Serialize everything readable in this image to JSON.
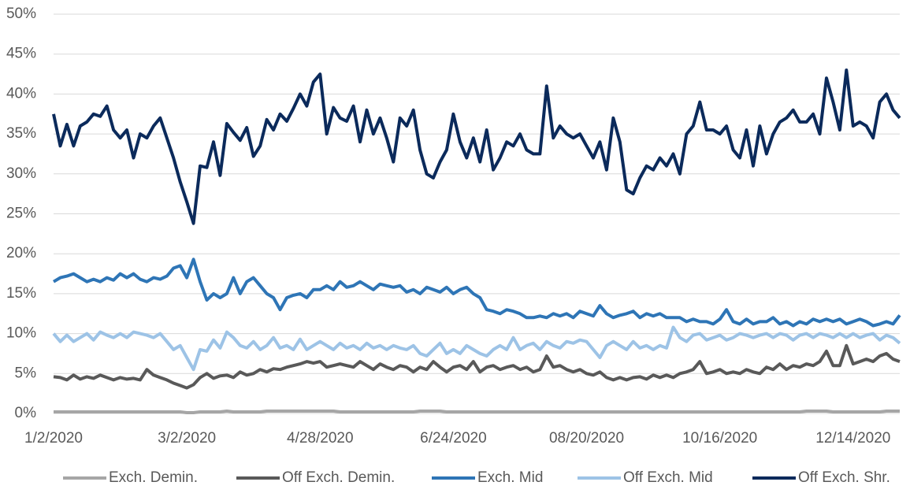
{
  "chart_data": {
    "type": "line",
    "categories": [
      "1/2/2020",
      null,
      null,
      null,
      null,
      null,
      null,
      null,
      null,
      null,
      null,
      null,
      null,
      null,
      null,
      null,
      null,
      null,
      null,
      null,
      "3/2/2020",
      null,
      null,
      null,
      null,
      null,
      null,
      null,
      null,
      null,
      null,
      null,
      null,
      null,
      null,
      null,
      null,
      null,
      null,
      null,
      "4/28/2020",
      null,
      null,
      null,
      null,
      null,
      null,
      null,
      null,
      null,
      null,
      null,
      null,
      null,
      null,
      null,
      null,
      null,
      null,
      null,
      "6/24/2020",
      null,
      null,
      null,
      null,
      null,
      null,
      null,
      null,
      null,
      null,
      null,
      null,
      null,
      null,
      null,
      null,
      null,
      null,
      null,
      "08/20/2020",
      null,
      null,
      null,
      null,
      null,
      null,
      null,
      null,
      null,
      null,
      null,
      null,
      null,
      null,
      null,
      null,
      null,
      null,
      null,
      "10/16/2020",
      null,
      null,
      null,
      null,
      null,
      null,
      null,
      null,
      null,
      null,
      null,
      null,
      null,
      null,
      null,
      null,
      null,
      null,
      null,
      "12/14/2020",
      null,
      null,
      null,
      null,
      null,
      null,
      null
    ],
    "series": [
      {
        "name": "Exch. Demin.",
        "color": "#a6a6a6",
        "values": [
          0.2,
          0.2,
          0.2,
          0.2,
          0.2,
          0.2,
          0.2,
          0.2,
          0.2,
          0.2,
          0.2,
          0.2,
          0.2,
          0.2,
          0.2,
          0.2,
          0.2,
          0.2,
          0.2,
          0.2,
          0.1,
          0.1,
          0.2,
          0.2,
          0.2,
          0.2,
          0.3,
          0.2,
          0.2,
          0.2,
          0.2,
          0.2,
          0.3,
          0.3,
          0.3,
          0.3,
          0.3,
          0.3,
          0.3,
          0.3,
          0.3,
          0.3,
          0.3,
          0.2,
          0.2,
          0.2,
          0.2,
          0.2,
          0.2,
          0.2,
          0.2,
          0.2,
          0.2,
          0.2,
          0.2,
          0.3,
          0.3,
          0.3,
          0.3,
          0.2,
          0.2,
          0.2,
          0.2,
          0.2,
          0.2,
          0.2,
          0.2,
          0.2,
          0.2,
          0.2,
          0.2,
          0.2,
          0.2,
          0.2,
          0.2,
          0.2,
          0.2,
          0.2,
          0.2,
          0.2,
          0.2,
          0.2,
          0.2,
          0.2,
          0.2,
          0.2,
          0.2,
          0.2,
          0.2,
          0.2,
          0.2,
          0.2,
          0.2,
          0.2,
          0.2,
          0.2,
          0.2,
          0.2,
          0.2,
          0.2,
          0.2,
          0.2,
          0.2,
          0.2,
          0.2,
          0.2,
          0.2,
          0.2,
          0.2,
          0.2,
          0.2,
          0.2,
          0.2,
          0.3,
          0.3,
          0.3,
          0.3,
          0.2,
          0.2,
          0.2,
          0.2,
          0.2,
          0.2,
          0.2,
          0.2,
          0.3,
          0.3,
          0.3
        ]
      },
      {
        "name": "Off Exch. Demin.",
        "color": "#595959",
        "values": [
          4.6,
          4.5,
          4.2,
          4.8,
          4.3,
          4.6,
          4.4,
          4.8,
          4.5,
          4.2,
          4.5,
          4.3,
          4.4,
          4.2,
          5.5,
          4.8,
          4.5,
          4.2,
          3.8,
          3.5,
          3.2,
          3.6,
          4.5,
          5,
          4.4,
          4.7,
          4.8,
          4.5,
          5.2,
          4.8,
          5,
          5.5,
          5.2,
          5.6,
          5.5,
          5.8,
          6,
          6.2,
          6.5,
          6.3,
          6.5,
          5.8,
          6,
          6.2,
          6,
          5.8,
          6.5,
          6,
          5.5,
          6.2,
          5.8,
          5.5,
          6,
          5.8,
          5.2,
          5.8,
          5.5,
          6.5,
          5.8,
          5.2,
          5.8,
          6,
          5.5,
          6.5,
          5.2,
          5.8,
          6,
          5.5,
          5.8,
          6,
          5.5,
          5.8,
          5.2,
          5.5,
          7.2,
          5.8,
          6,
          5.5,
          5.2,
          5.5,
          5,
          4.8,
          5.2,
          4.5,
          4.2,
          4.5,
          4.2,
          4.5,
          4.6,
          4.3,
          4.8,
          4.5,
          4.8,
          4.5,
          5,
          5.2,
          5.5,
          6.5,
          5,
          5.2,
          5.5,
          5,
          5.2,
          5,
          5.5,
          5.2,
          5,
          5.8,
          5.5,
          6.2,
          5.5,
          6,
          5.8,
          6.2,
          6,
          6.5,
          7.8,
          6,
          6,
          8.5,
          6.2,
          6.5,
          6.8,
          6.5,
          7.2,
          7.5,
          6.8,
          6.5
        ]
      },
      {
        "name": "Exch. Mid",
        "color": "#2e75b6",
        "values": [
          16.5,
          17,
          17.2,
          17.5,
          17,
          16.5,
          16.8,
          16.5,
          17,
          16.7,
          17.5,
          17,
          17.5,
          16.8,
          16.5,
          17,
          16.8,
          17.2,
          18.2,
          18.5,
          17,
          19.3,
          16.5,
          14.2,
          15,
          14.5,
          15,
          17,
          15,
          16.5,
          17,
          16,
          15,
          14.5,
          13,
          14.5,
          14.8,
          15,
          14.5,
          15.5,
          15.5,
          16,
          15.5,
          16.5,
          15.8,
          16,
          16.5,
          16,
          15.5,
          16.2,
          16,
          15.8,
          16,
          15.2,
          15.5,
          15,
          15.8,
          15.5,
          15.2,
          15.8,
          15,
          15.5,
          15.8,
          15,
          14.5,
          13,
          12.8,
          12.5,
          13,
          12.8,
          12.5,
          12,
          12,
          12.2,
          12,
          12.5,
          12.2,
          12.5,
          12,
          12.8,
          12.5,
          12.2,
          13.5,
          12.5,
          12,
          12.3,
          12.5,
          12.8,
          12,
          12.5,
          12.2,
          12.5,
          12,
          12,
          12,
          11.5,
          11.8,
          11.5,
          11.5,
          11.2,
          11.8,
          13,
          11.5,
          11.2,
          11.8,
          11.2,
          11.5,
          11.5,
          12,
          11.2,
          11.5,
          11,
          11.5,
          11.2,
          11.8,
          11.5,
          11.8,
          11.5,
          11.8,
          11.2,
          11.5,
          11.8,
          11.5,
          11,
          11.2,
          11.5,
          11.2,
          12.3
        ]
      },
      {
        "name": "Off Exch. Mid",
        "color": "#9dc3e6",
        "values": [
          10,
          9,
          9.8,
          9,
          9.5,
          10,
          9.2,
          10.2,
          9.8,
          9.5,
          10,
          9.5,
          10.2,
          10,
          9.8,
          9.5,
          10,
          9,
          8,
          8.5,
          7,
          5.5,
          8,
          7.8,
          9.2,
          8.2,
          10.2,
          9.5,
          8.5,
          8.2,
          9,
          8,
          8.5,
          9.5,
          8.2,
          8.5,
          8,
          9.3,
          8,
          8.5,
          9,
          8.5,
          8,
          8.8,
          8.2,
          8.5,
          8,
          8.8,
          8.2,
          8.5,
          8,
          8.5,
          8.2,
          8,
          8.5,
          7.5,
          7.2,
          8,
          8.8,
          7.5,
          8,
          7.5,
          8.5,
          8,
          7.5,
          7.2,
          8,
          8.5,
          8,
          9.5,
          8,
          8.5,
          8.8,
          8,
          9,
          8.5,
          8.2,
          9,
          8.8,
          9.2,
          9,
          8,
          7,
          8.5,
          9,
          8.5,
          8,
          9,
          8.2,
          8.5,
          8,
          8.5,
          8.2,
          10.8,
          9.5,
          9,
          9.8,
          10,
          9.2,
          9.5,
          9.8,
          9.2,
          9.5,
          10,
          9.8,
          9.5,
          9.8,
          10,
          9.5,
          10,
          9.8,
          9.2,
          9.8,
          10,
          9.5,
          10,
          9.8,
          9.5,
          10,
          9.5,
          10,
          9.5,
          9.8,
          10,
          9.2,
          9.8,
          9.5,
          8.8
        ]
      },
      {
        "name": "Off Exch. Shr.",
        "color": "#0b2a5b",
        "values": [
          37.5,
          33.5,
          36.2,
          33.5,
          36,
          36.5,
          37.5,
          37.2,
          38.5,
          35.5,
          34.5,
          35.5,
          32,
          35,
          34.5,
          36,
          37,
          34.5,
          32,
          29,
          26.5,
          23.8,
          31,
          30.8,
          34,
          29.8,
          36.3,
          35.2,
          34.2,
          35.8,
          32.2,
          33.5,
          36.8,
          35.5,
          37.5,
          36.6,
          38.2,
          40,
          38.5,
          41.5,
          42.5,
          35,
          38.3,
          37,
          36.6,
          38.5,
          34,
          38,
          35,
          37,
          34.5,
          31.5,
          37,
          36,
          38,
          33,
          30,
          29.5,
          31.5,
          33,
          37.5,
          34,
          32,
          34.5,
          31.5,
          35.5,
          30.5,
          32,
          34,
          33.5,
          35,
          33,
          32.5,
          32.5,
          41,
          34.5,
          36,
          35,
          34.5,
          35,
          33.5,
          32,
          34,
          30.5,
          37,
          34,
          28,
          27.5,
          29.5,
          31,
          30.5,
          32,
          31,
          32.5,
          30,
          35,
          36,
          39,
          35.5,
          35.5,
          35,
          36,
          33,
          32,
          35.5,
          31,
          36,
          32.5,
          35,
          36.5,
          37,
          38,
          36.5,
          36.5,
          37.5,
          35,
          42,
          39,
          35.5,
          43,
          36,
          36.5,
          36,
          34.5,
          39,
          40,
          38,
          37
        ]
      }
    ],
    "ylim": [
      0,
      50
    ],
    "yticks": [
      {
        "value": 0,
        "label": "0%"
      },
      {
        "value": 5,
        "label": "5%"
      },
      {
        "value": 10,
        "label": "10%"
      },
      {
        "value": 15,
        "label": "15%"
      },
      {
        "value": 20,
        "label": "20%"
      },
      {
        "value": 25,
        "label": "25%"
      },
      {
        "value": 30,
        "label": "30%"
      },
      {
        "value": 35,
        "label": "35%"
      },
      {
        "value": 40,
        "label": "40%"
      },
      {
        "value": 45,
        "label": "45%"
      },
      {
        "value": 50,
        "label": "50%"
      }
    ],
    "grid": true,
    "legend": "bottom"
  }
}
